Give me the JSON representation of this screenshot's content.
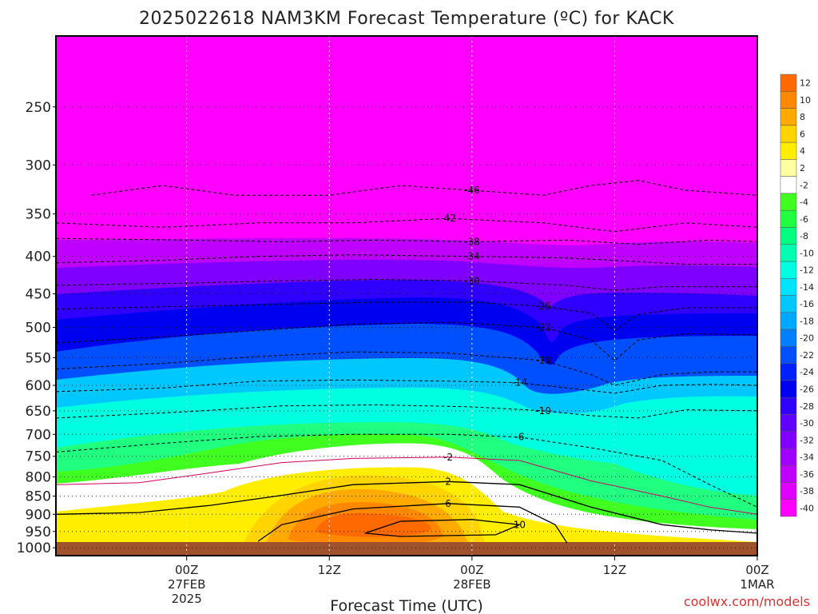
{
  "chart_data": {
    "type": "heatmap",
    "title": "2025022618 NAM3KM Forecast Temperature (ºC) for KACK",
    "xlabel": "Forecast Time (UTC)",
    "credit": "coolwx.com/models",
    "y_axis": {
      "variable": "pressure (hPa)",
      "ticks": [
        "250",
        "300",
        "350",
        "400",
        "450",
        "500",
        "550",
        "600",
        "650",
        "700",
        "750",
        "800",
        "850",
        "900",
        "950",
        "1000"
      ],
      "range": [
        1025,
        200
      ]
    },
    "x_axis": {
      "range_hours": [
        -5,
        54
      ],
      "ticks": [
        {
          "hour": 6,
          "label": "00Z",
          "sub1": "27FEB",
          "sub2": "2025"
        },
        {
          "hour": 18,
          "label": "12Z",
          "sub1": "",
          "sub2": ""
        },
        {
          "hour": 30,
          "label": "00Z",
          "sub1": "28FEB",
          "sub2": ""
        },
        {
          "hour": 42,
          "label": "12Z",
          "sub1": "",
          "sub2": ""
        },
        {
          "hour": 54,
          "label": "00Z",
          "sub1": "1MAR",
          "sub2": ""
        }
      ]
    },
    "colorbar": {
      "levels": [
        -40,
        -38,
        -36,
        -34,
        -32,
        -30,
        -28,
        -26,
        -24,
        -22,
        -20,
        -18,
        -16,
        -14,
        -12,
        -10,
        -8,
        -6,
        -4,
        -2,
        2,
        4,
        6,
        8,
        10,
        12
      ],
      "colors": [
        "#ff00ff",
        "#e000ff",
        "#c000ff",
        "#a000ff",
        "#8000ff",
        "#6000ff",
        "#3000ff",
        "#0000f0",
        "#0020ff",
        "#0050ff",
        "#0080ff",
        "#00a8ff",
        "#00c8ff",
        "#00e4ff",
        "#00ffe0",
        "#00ffb0",
        "#00ff80",
        "#20ff40",
        "#40ff20",
        "#ffffff",
        "#ffffa0",
        "#ffee00",
        "#ffd400",
        "#ffaa00",
        "#ff8800",
        "#ff6a00"
      ]
    },
    "isotherms_hour_vs_hpa": [
      {
        "label": "-46",
        "points": [
          [
            -2,
            330
          ],
          [
            4,
            320
          ],
          [
            10,
            330
          ],
          [
            18,
            330
          ],
          [
            24,
            320
          ],
          [
            30,
            325
          ],
          [
            36,
            330
          ],
          [
            40,
            320
          ],
          [
            44,
            315
          ],
          [
            48,
            325
          ],
          [
            54,
            330
          ]
        ]
      },
      {
        "label": "-42",
        "points": [
          [
            -5,
            360
          ],
          [
            4,
            365
          ],
          [
            12,
            360
          ],
          [
            20,
            360
          ],
          [
            28,
            355
          ],
          [
            36,
            360
          ],
          [
            42,
            370
          ],
          [
            48,
            360
          ],
          [
            54,
            365
          ]
        ]
      },
      {
        "label": "-38",
        "points": [
          [
            -5,
            378
          ],
          [
            6,
            380
          ],
          [
            14,
            382
          ],
          [
            22,
            380
          ],
          [
            30,
            382
          ],
          [
            38,
            380
          ],
          [
            44,
            385
          ],
          [
            50,
            380
          ],
          [
            54,
            382
          ]
        ]
      },
      {
        "label": "-34",
        "points": [
          [
            -5,
            408
          ],
          [
            4,
            405
          ],
          [
            12,
            400
          ],
          [
            20,
            398
          ],
          [
            30,
            400
          ],
          [
            38,
            402
          ],
          [
            42,
            405
          ],
          [
            48,
            410
          ],
          [
            54,
            410
          ]
        ]
      },
      {
        "label": "-30",
        "points": [
          [
            -5,
            438
          ],
          [
            6,
            435
          ],
          [
            14,
            432
          ],
          [
            22,
            430
          ],
          [
            30,
            432
          ],
          [
            38,
            438
          ],
          [
            42,
            445
          ],
          [
            46,
            440
          ],
          [
            54,
            440
          ]
        ]
      },
      {
        "label": "-26",
        "points": [
          [
            -5,
            472
          ],
          [
            6,
            468
          ],
          [
            14,
            465
          ],
          [
            22,
            462
          ],
          [
            30,
            462
          ],
          [
            36,
            468
          ],
          [
            40,
            478
          ],
          [
            42,
            505
          ],
          [
            44,
            480
          ],
          [
            48,
            470
          ],
          [
            54,
            470
          ]
        ]
      },
      {
        "label": "-22",
        "points": [
          [
            -5,
            525
          ],
          [
            4,
            515
          ],
          [
            12,
            505
          ],
          [
            20,
            495
          ],
          [
            28,
            492
          ],
          [
            36,
            500
          ],
          [
            40,
            520
          ],
          [
            42,
            555
          ],
          [
            44,
            520
          ],
          [
            48,
            510
          ],
          [
            54,
            512
          ]
        ]
      },
      {
        "label": "-18",
        "points": [
          [
            -5,
            570
          ],
          [
            4,
            560
          ],
          [
            12,
            548
          ],
          [
            20,
            540
          ],
          [
            28,
            542
          ],
          [
            36,
            555
          ],
          [
            40,
            580
          ],
          [
            42,
            600
          ],
          [
            46,
            580
          ],
          [
            50,
            575
          ],
          [
            54,
            575
          ]
        ]
      },
      {
        "label": "-14",
        "points": [
          [
            -5,
            612
          ],
          [
            4,
            605
          ],
          [
            12,
            592
          ],
          [
            20,
            590
          ],
          [
            28,
            592
          ],
          [
            34,
            595
          ],
          [
            38,
            605
          ],
          [
            42,
            615
          ],
          [
            46,
            600
          ],
          [
            50,
            598
          ],
          [
            54,
            600
          ]
        ]
      },
      {
        "label": "-10",
        "points": [
          [
            -5,
            665
          ],
          [
            6,
            652
          ],
          [
            14,
            640
          ],
          [
            22,
            638
          ],
          [
            30,
            642
          ],
          [
            36,
            650
          ],
          [
            40,
            660
          ],
          [
            44,
            665
          ],
          [
            48,
            648
          ],
          [
            54,
            650
          ]
        ]
      },
      {
        "label": "-6",
        "points": [
          [
            -5,
            740
          ],
          [
            4,
            720
          ],
          [
            12,
            705
          ],
          [
            20,
            700
          ],
          [
            28,
            700
          ],
          [
            34,
            706
          ],
          [
            40,
            730
          ],
          [
            46,
            760
          ],
          [
            50,
            820
          ],
          [
            54,
            880
          ]
        ]
      },
      {
        "label": "-2",
        "points": [
          [
            -5,
            820
          ],
          [
            2,
            815
          ],
          [
            8,
            790
          ],
          [
            14,
            765
          ],
          [
            20,
            755
          ],
          [
            28,
            752
          ],
          [
            34,
            760
          ],
          [
            40,
            810
          ],
          [
            46,
            850
          ],
          [
            50,
            880
          ],
          [
            54,
            900
          ]
        ]
      },
      {
        "label": "2",
        "points": [
          [
            -5,
            900
          ],
          [
            2,
            895
          ],
          [
            8,
            875
          ],
          [
            14,
            848
          ],
          [
            20,
            820
          ],
          [
            28,
            812
          ],
          [
            34,
            820
          ],
          [
            40,
            880
          ],
          [
            46,
            930
          ],
          [
            50,
            945
          ],
          [
            54,
            955
          ]
        ]
      },
      {
        "label": "6",
        "points": [
          [
            12,
            980
          ],
          [
            14,
            930
          ],
          [
            20,
            885
          ],
          [
            28,
            870
          ],
          [
            34,
            880
          ],
          [
            37,
            930
          ],
          [
            38,
            985
          ]
        ]
      },
      {
        "label": "10",
        "points": [
          [
            21,
            955
          ],
          [
            24,
            920
          ],
          [
            30,
            915
          ],
          [
            34,
            930
          ],
          [
            32,
            960
          ],
          [
            24,
            965
          ],
          [
            21,
            955
          ]
        ]
      }
    ]
  }
}
